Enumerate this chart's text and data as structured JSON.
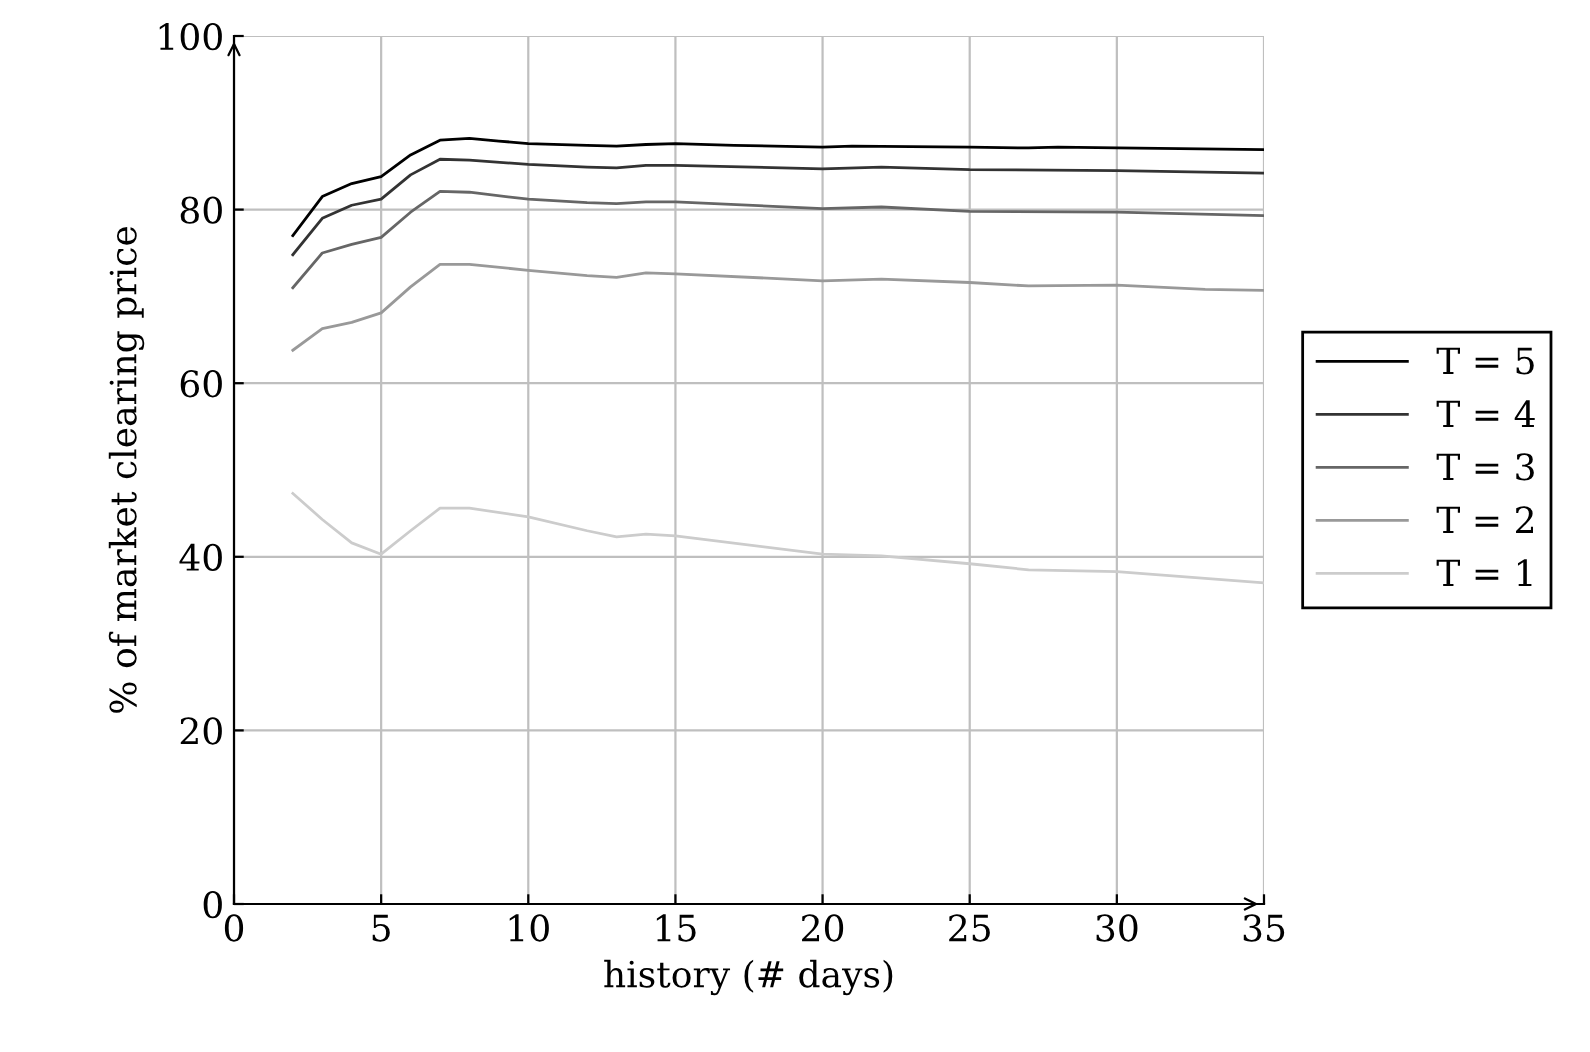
{
  "chart_data": {
    "type": "line",
    "xlabel": "history (# days)",
    "ylabel": "% of market clearing price",
    "xlim": [
      0,
      35
    ],
    "ylim": [
      0,
      100
    ],
    "xticks": [
      0,
      5,
      10,
      15,
      20,
      25,
      30,
      35
    ],
    "yticks": [
      0,
      20,
      40,
      60,
      80,
      100
    ],
    "grid": true,
    "legend": "right",
    "marker": "none",
    "line_style": "solid",
    "series": [
      {
        "name": "T = 5",
        "color": "#000000",
        "x": [
          2,
          3,
          4,
          5,
          6,
          7,
          8,
          9,
          10,
          12,
          13,
          14,
          15,
          17,
          20,
          21,
          25,
          27,
          28,
          30,
          35
        ],
        "values": [
          77,
          81.5,
          83,
          83.8,
          86.3,
          88,
          88.2,
          87.9,
          87.6,
          87.4,
          87.3,
          87.5,
          87.6,
          87.4,
          87.2,
          87.3,
          87.2,
          87.1,
          87.2,
          87.1,
          86.9
        ]
      },
      {
        "name": "T = 4",
        "color": "#333333",
        "x": [
          2,
          3,
          4,
          5,
          6,
          7,
          8,
          10,
          12,
          13,
          14,
          15,
          20,
          22,
          25,
          30,
          35
        ],
        "values": [
          74.8,
          79,
          80.5,
          81.2,
          84,
          85.8,
          85.7,
          85.2,
          84.9,
          84.8,
          85.1,
          85.1,
          84.7,
          84.9,
          84.6,
          84.5,
          84.2
        ]
      },
      {
        "name": "T = 3",
        "color": "#666666",
        "x": [
          2,
          3,
          4,
          5,
          6,
          7,
          8,
          10,
          12,
          13,
          14,
          15,
          20,
          22,
          25,
          30,
          35
        ],
        "values": [
          71,
          75,
          76,
          76.8,
          79.7,
          82.1,
          82,
          81.2,
          80.8,
          80.7,
          80.9,
          80.9,
          80.1,
          80.3,
          79.8,
          79.7,
          79.3
        ]
      },
      {
        "name": "T = 2",
        "color": "#999999",
        "x": [
          2,
          3,
          4,
          5,
          6,
          7,
          8,
          10,
          12,
          13,
          14,
          15,
          20,
          22,
          25,
          27,
          30,
          33,
          35
        ],
        "values": [
          63.8,
          66.3,
          67,
          68.1,
          71.1,
          73.7,
          73.7,
          73,
          72.4,
          72.2,
          72.7,
          72.6,
          71.8,
          72,
          71.6,
          71.2,
          71.3,
          70.8,
          70.7
        ]
      },
      {
        "name": "T = 1",
        "color": "#cccccc",
        "x": [
          2,
          3,
          4,
          5,
          6,
          7,
          8,
          10,
          12,
          13,
          14,
          15,
          20,
          22,
          25,
          27,
          30,
          35
        ],
        "values": [
          47.3,
          44.3,
          41.6,
          40.3,
          43,
          45.6,
          45.6,
          44.6,
          43,
          42.3,
          42.6,
          42.4,
          40.3,
          40.1,
          39.2,
          38.5,
          38.3,
          37
        ]
      }
    ]
  }
}
